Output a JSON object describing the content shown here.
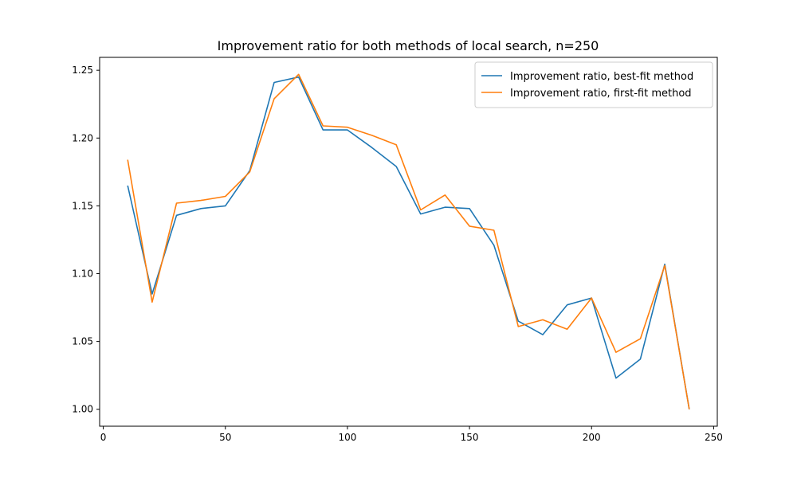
{
  "chart_data": {
    "type": "line",
    "title": "Improvement ratio for both methods of local search, n=250",
    "xlabel": "",
    "ylabel": "",
    "xlim": [
      -1.5,
      251.5
    ],
    "ylim": [
      0.9875,
      1.2595
    ],
    "xticks": [
      0,
      50,
      100,
      150,
      200,
      250
    ],
    "yticks": [
      1.0,
      1.05,
      1.1,
      1.15,
      1.2,
      1.25
    ],
    "grid": false,
    "legend_position": "top-right",
    "x": [
      10,
      20,
      30,
      40,
      50,
      60,
      70,
      80,
      90,
      100,
      110,
      120,
      130,
      140,
      150,
      160,
      170,
      180,
      190,
      200,
      210,
      220,
      230,
      240
    ],
    "series": [
      {
        "name": "Improvement ratio, best-fit method",
        "color": "#1f77b4",
        "values": [
          1.165,
          1.085,
          1.143,
          1.148,
          1.15,
          1.176,
          1.241,
          1.245,
          1.206,
          1.206,
          1.193,
          1.179,
          1.144,
          1.149,
          1.148,
          1.121,
          1.065,
          1.055,
          1.077,
          1.082,
          1.023,
          1.037,
          1.107,
          1.0
        ]
      },
      {
        "name": "Improvement ratio, first-fit method",
        "color": "#ff7f0e",
        "values": [
          1.184,
          1.079,
          1.152,
          1.154,
          1.157,
          1.175,
          1.229,
          1.247,
          1.209,
          1.208,
          1.202,
          1.195,
          1.147,
          1.158,
          1.135,
          1.132,
          1.061,
          1.066,
          1.059,
          1.082,
          1.042,
          1.052,
          1.106,
          1.0
        ]
      }
    ]
  }
}
